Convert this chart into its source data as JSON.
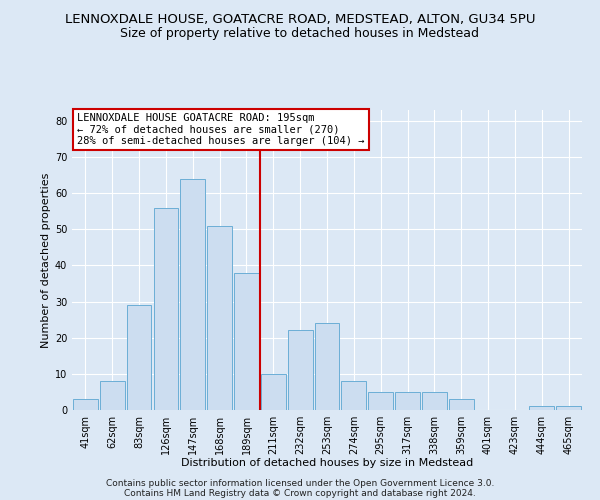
{
  "title": "LENNOXDALE HOUSE, GOATACRE ROAD, MEDSTEAD, ALTON, GU34 5PU",
  "subtitle": "Size of property relative to detached houses in Medstead",
  "xlabel": "Distribution of detached houses by size in Medstead",
  "ylabel": "Number of detached properties",
  "bar_labels": [
    "41sqm",
    "62sqm",
    "83sqm",
    "126sqm",
    "147sqm",
    "168sqm",
    "189sqm",
    "211sqm",
    "232sqm",
    "253sqm",
    "274sqm",
    "295sqm",
    "317sqm",
    "338sqm",
    "359sqm",
    "401sqm",
    "423sqm",
    "444sqm",
    "465sqm"
  ],
  "bar_values": [
    3,
    8,
    29,
    56,
    64,
    51,
    38,
    10,
    22,
    24,
    8,
    5,
    5,
    5,
    3,
    0,
    0,
    1,
    1
  ],
  "bar_color": "#ccddf0",
  "bar_edge_color": "#6baed6",
  "annotation_lines": [
    "LENNOXDALE HOUSE GOATACRE ROAD: 195sqm",
    "← 72% of detached houses are smaller (270)",
    "28% of semi-detached houses are larger (104) →"
  ],
  "annotation_box_color": "#ffffff",
  "annotation_box_edge": "#cc0000",
  "vline_color": "#cc0000",
  "vline_x": 6.5,
  "ylim": [
    0,
    83
  ],
  "yticks": [
    0,
    10,
    20,
    30,
    40,
    50,
    60,
    70,
    80
  ],
  "footer_lines": [
    "Contains HM Land Registry data © Crown copyright and database right 2024.",
    "Contains public sector information licensed under the Open Government Licence 3.0."
  ],
  "background_color": "#dce8f5",
  "plot_background": "#dce8f5",
  "grid_color": "#ffffff",
  "title_fontsize": 9.5,
  "subtitle_fontsize": 9,
  "axis_label_fontsize": 8,
  "tick_fontsize": 7,
  "footer_fontsize": 6.5,
  "annotation_fontsize": 7.5
}
